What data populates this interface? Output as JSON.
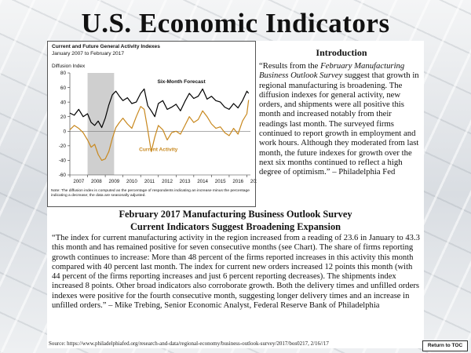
{
  "page": {
    "title": "U.S. Economic Indicators",
    "intro_heading": "Introduction",
    "intro_pre": "“Results from the ",
    "intro_em": "February Manufacturing Business Outlook Survey",
    "intro_post": " suggest that growth in regional manufacturing is broadening.  The diffusion indexes for general activity, new orders, and shipments were all positive this month and increased notably from their readings last month.  The surveyed firms continued to report growth in employment and work hours.  Although they moderated from last month, the future indexes for growth over the next six months continued to reflect a high degree of optimism.” – Philadelphia Fed",
    "section_title": "February 2017 Manufacturing Business Outlook Survey",
    "section_subtitle": "Current Indicators Suggest Broadening Expansion",
    "body": "“The index for current manufacturing activity in the region increased from a reading of 23.6 in January to 43.3 this month and has remained positive for seven consecutive months (see Chart).  The share of firms reporting growth continues to increase: More than 48 percent of the firms reported increases in this activity this month compared with 40 percent last month.  The index for current new orders increased 12 points this month (with 44 percent of the firms reporting increases and just 6 percent reporting decreases).  The shipments index increased 8 points.  Other broad indicators also corroborate growth.  Both the delivery times and unfilled orders indexes were positive for the fourth consecutive month, suggesting longer delivery times and an increase in unfilled orders.” – Mike Trebing, Senior Economic Analyst, Federal Reserve Bank of Philadelphia",
    "source": "Source: https://www.philadelphiafed.org/research-and-data/regional-economy/business-outlook-survey/2017/bos0217, 2/16//17",
    "toc_label": "Return to TOC"
  },
  "chart_data": {
    "type": "line",
    "title": "Current and Future General Activity Indexes",
    "subtitle": "January 2007 to February 2017",
    "ylabel": "Diffusion Index",
    "note": "Note: The diffusion index is computed as the percentage of respondents indicating an increase minus the percentage indicating a decrease; the data are seasonally adjusted.",
    "xlim": [
      2007.0,
      2017.2
    ],
    "ylim": [
      -60,
      80
    ],
    "yticks": [
      80,
      60,
      40,
      20,
      0,
      -20,
      -40,
      -60
    ],
    "xticks": [
      "2007",
      "2008",
      "2009",
      "2010",
      "2011",
      "2012",
      "2013",
      "2014",
      "2015",
      "2016",
      "2017"
    ],
    "recession": [
      2008.0,
      2009.5
    ],
    "colors": {
      "future": "#000000",
      "current": "#c8881e",
      "recession": "#cfcfcf"
    },
    "series": [
      {
        "name": "Six-Month Forecast",
        "x": [
          2007.0,
          2007.25,
          2007.5,
          2007.75,
          2008.0,
          2008.2,
          2008.4,
          2008.6,
          2008.8,
          2009.0,
          2009.2,
          2009.4,
          2009.6,
          2009.8,
          2010.0,
          2010.25,
          2010.5,
          2010.75,
          2011.0,
          2011.2,
          2011.4,
          2011.6,
          2011.8,
          2012.0,
          2012.25,
          2012.5,
          2012.75,
          2013.0,
          2013.25,
          2013.5,
          2013.75,
          2014.0,
          2014.25,
          2014.5,
          2014.75,
          2015.0,
          2015.25,
          2015.5,
          2015.75,
          2016.0,
          2016.25,
          2016.5,
          2016.75,
          2017.0,
          2017.1
        ],
        "values": [
          25,
          22,
          30,
          20,
          24,
          12,
          8,
          14,
          5,
          18,
          36,
          50,
          55,
          48,
          42,
          46,
          38,
          40,
          52,
          58,
          35,
          28,
          20,
          38,
          42,
          30,
          33,
          37,
          28,
          41,
          52,
          45,
          48,
          58,
          44,
          48,
          42,
          40,
          33,
          30,
          38,
          32,
          42,
          55,
          52
        ]
      },
      {
        "name": "Current Activity",
        "x": [
          2007.0,
          2007.25,
          2007.5,
          2007.75,
          2008.0,
          2008.2,
          2008.4,
          2008.6,
          2008.8,
          2009.0,
          2009.2,
          2009.4,
          2009.6,
          2009.8,
          2010.0,
          2010.25,
          2010.5,
          2010.75,
          2011.0,
          2011.2,
          2011.4,
          2011.6,
          2011.8,
          2012.0,
          2012.25,
          2012.5,
          2012.75,
          2013.0,
          2013.25,
          2013.5,
          2013.75,
          2014.0,
          2014.25,
          2014.5,
          2014.75,
          2015.0,
          2015.25,
          2015.5,
          2015.75,
          2016.0,
          2016.25,
          2016.5,
          2016.75,
          2017.0,
          2017.1
        ],
        "values": [
          2,
          8,
          4,
          -2,
          -12,
          -22,
          -18,
          -32,
          -40,
          -38,
          -28,
          -10,
          5,
          12,
          18,
          10,
          4,
          20,
          34,
          30,
          2,
          -28,
          -8,
          8,
          2,
          -12,
          -2,
          0,
          -4,
          8,
          20,
          12,
          16,
          28,
          20,
          10,
          4,
          6,
          -2,
          -6,
          4,
          -4,
          14,
          24,
          43
        ]
      }
    ],
    "annotations": [
      "Six-Month Forecast",
      "Current Activity"
    ]
  }
}
